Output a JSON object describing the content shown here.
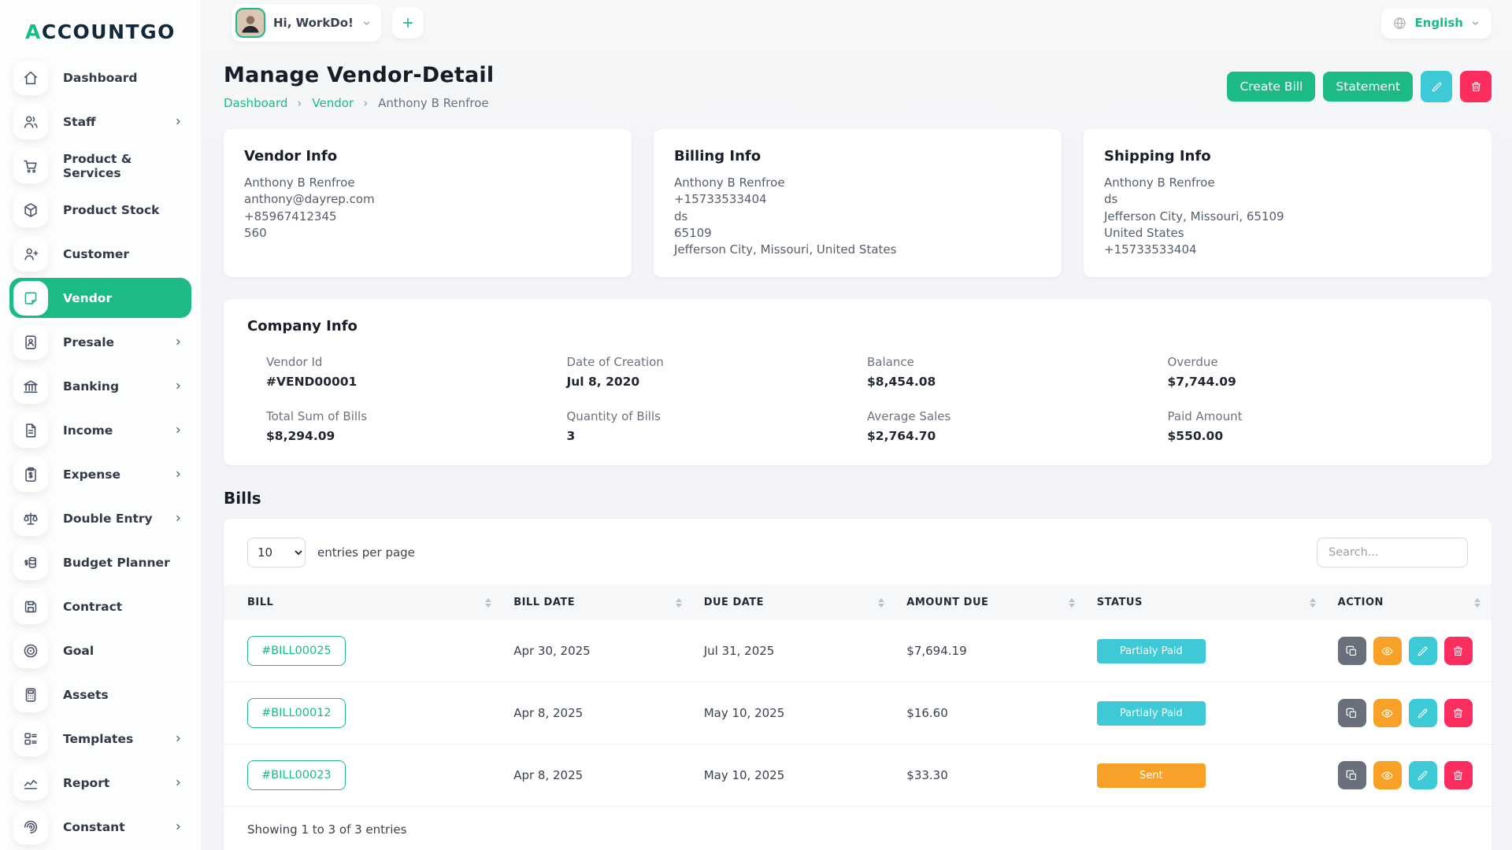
{
  "brand": {
    "logo_first": "A",
    "logo_rest": "CCOUNTGO"
  },
  "header": {
    "greeting": "Hi, WorkDo!",
    "language": "English"
  },
  "sidebar": {
    "items": [
      {
        "label": "Dashboard",
        "icon": "home-icon",
        "has_children": false,
        "active": false
      },
      {
        "label": "Staff",
        "icon": "users-icon",
        "has_children": true,
        "active": false
      },
      {
        "label": "Product & Services",
        "icon": "cart-icon",
        "has_children": false,
        "active": false
      },
      {
        "label": "Product Stock",
        "icon": "package-icon",
        "has_children": false,
        "active": false
      },
      {
        "label": "Customer",
        "icon": "user-plus-icon",
        "has_children": false,
        "active": false
      },
      {
        "label": "Vendor",
        "icon": "note-icon",
        "has_children": false,
        "active": true
      },
      {
        "label": "Presale",
        "icon": "badge-icon",
        "has_children": true,
        "active": false
      },
      {
        "label": "Banking",
        "icon": "bank-icon",
        "has_children": true,
        "active": false
      },
      {
        "label": "Income",
        "icon": "file-icon",
        "has_children": true,
        "active": false
      },
      {
        "label": "Expense",
        "icon": "clipboard-dollar-icon",
        "has_children": true,
        "active": false
      },
      {
        "label": "Double Entry",
        "icon": "scale-icon",
        "has_children": true,
        "active": false
      },
      {
        "label": "Budget Planner",
        "icon": "coins-icon",
        "has_children": false,
        "active": false
      },
      {
        "label": "Contract",
        "icon": "floppy-icon",
        "has_children": false,
        "active": false
      },
      {
        "label": "Goal",
        "icon": "target-icon",
        "has_children": false,
        "active": false
      },
      {
        "label": "Assets",
        "icon": "calculator-icon",
        "has_children": false,
        "active": false
      },
      {
        "label": "Templates",
        "icon": "layout-icon",
        "has_children": true,
        "active": false
      },
      {
        "label": "Report",
        "icon": "chart-icon",
        "has_children": true,
        "active": false
      },
      {
        "label": "Constant",
        "icon": "spiral-icon",
        "has_children": true,
        "active": false
      }
    ]
  },
  "page": {
    "title": "Manage Vendor-Detail",
    "breadcrumb": [
      "Dashboard",
      "Vendor",
      "Anthony B Renfroe"
    ],
    "actions": {
      "create_bill": "Create Bill",
      "statement": "Statement"
    }
  },
  "cards": {
    "vendor_info": {
      "title": "Vendor Info",
      "lines": [
        "Anthony B Renfroe",
        "anthony@dayrep.com",
        "+85967412345",
        "560"
      ]
    },
    "billing_info": {
      "title": "Billing Info",
      "lines": [
        "Anthony B Renfroe",
        "+15733533404",
        "ds",
        "65109",
        "Jefferson City, Missouri, United States"
      ]
    },
    "shipping_info": {
      "title": "Shipping Info",
      "lines": [
        "Anthony B Renfroe",
        "ds",
        "Jefferson City, Missouri, 65109",
        "United States",
        "+15733533404"
      ]
    }
  },
  "company_info": {
    "title": "Company Info",
    "fields": [
      {
        "label": "Vendor Id",
        "value": "#VEND00001"
      },
      {
        "label": "Date of Creation",
        "value": "Jul 8, 2020"
      },
      {
        "label": "Balance",
        "value": "$8,454.08"
      },
      {
        "label": "Overdue",
        "value": "$7,744.09"
      },
      {
        "label": "Total Sum of Bills",
        "value": "$8,294.09"
      },
      {
        "label": "Quantity of Bills",
        "value": "3"
      },
      {
        "label": "Average Sales",
        "value": "$2,764.70"
      },
      {
        "label": "Paid Amount",
        "value": "$550.00"
      }
    ]
  },
  "bills": {
    "title": "Bills",
    "entries_per_page_value": "10",
    "entries_per_page_label": "entries per page",
    "search_placeholder": "Search...",
    "columns": [
      "BILL",
      "BILL DATE",
      "DUE DATE",
      "AMOUNT DUE",
      "STATUS",
      "ACTION"
    ],
    "rows": [
      {
        "bill": "#BILL00025",
        "bill_date": "Apr 30, 2025",
        "due_date": "Jul 31, 2025",
        "amount_due": "$7,694.19",
        "status": "Partialy Paid",
        "status_color": "#3ec9d6"
      },
      {
        "bill": "#BILL00012",
        "bill_date": "Apr 8, 2025",
        "due_date": "May 10, 2025",
        "amount_due": "$16.60",
        "status": "Partialy Paid",
        "status_color": "#3ec9d6"
      },
      {
        "bill": "#BILL00023",
        "bill_date": "Apr 8, 2025",
        "due_date": "May 10, 2025",
        "amount_due": "$33.30",
        "status": "Sent",
        "status_color": "#f8a128"
      }
    ],
    "row_actions": [
      {
        "name": "duplicate",
        "icon": "copy-icon",
        "color": "#696f7b"
      },
      {
        "name": "view",
        "icon": "eye-icon",
        "color": "#f8a128"
      },
      {
        "name": "edit",
        "icon": "pencil-icon",
        "color": "#3ec9d6"
      },
      {
        "name": "delete",
        "icon": "trash-icon",
        "color": "#fc2d5f"
      }
    ],
    "footer": "Showing 1 to 3 of 3 entries"
  },
  "colors": {
    "primary": "#1cba87",
    "info": "#3ec9d6",
    "warning": "#f8a128",
    "danger": "#fc2d5f",
    "gray_action": "#696f7b",
    "due_red": "#fb3e63"
  }
}
